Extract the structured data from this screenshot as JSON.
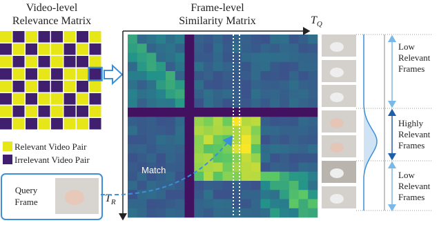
{
  "relevance_matrix": {
    "title": [
      "Video-level",
      "Relevance Matrix"
    ],
    "legend": [
      "Relevant Video Pair",
      "Irrelevant Video Pair"
    ]
  },
  "similarity_matrix": {
    "title": [
      "Frame-level",
      "Similarity Matrix"
    ],
    "axis_query": {
      "symbol": "T",
      "subscript": "Q"
    },
    "axis_reference": {
      "symbol": "T",
      "subscript": "R"
    },
    "match": "Match"
  },
  "query": {
    "label": [
      "Query",
      "Frame"
    ]
  },
  "frames": {
    "groups": [
      [
        "Low",
        "Relevant",
        "Frames"
      ],
      [
        "Highly",
        "Relevant",
        "Frames"
      ],
      [
        "Low",
        "Relevant",
        "Frames"
      ]
    ]
  }
}
